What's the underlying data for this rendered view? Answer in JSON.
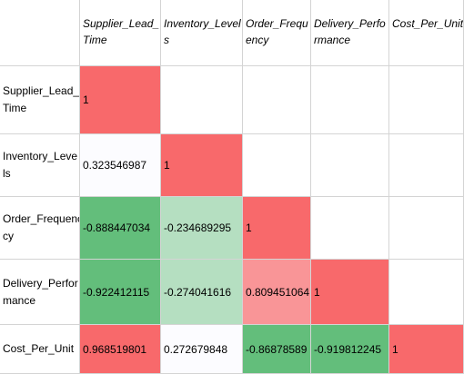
{
  "headers": {
    "cols": [
      "Supplier_Lead_\nTime",
      "Inventory_Level\ns",
      "Order_Frequ\nency",
      "Delivery_Perfo\nrmance",
      "Cost_Per_Unit"
    ],
    "rows": [
      "Supplier_Lead_\nTime",
      "Inventory_Leve\nls",
      "Order_Frequency\ncy",
      "Delivery_Perfor\nmance",
      "Cost_Per_Unit"
    ]
  },
  "matrix": [
    [
      "1",
      "",
      "",
      "",
      ""
    ],
    [
      "0.323546987",
      "1",
      "",
      "",
      ""
    ],
    [
      "-0.888447034",
      "-0.234689295",
      "1",
      "",
      ""
    ],
    [
      "-0.922412115",
      "-0.274041616",
      "0.809451064",
      "1",
      ""
    ],
    [
      "0.968519801",
      "0.272679848",
      "-0.86878589",
      "-0.919812245",
      "1"
    ]
  ],
  "colors": {
    "one": "#f8696b",
    "pos_high": "#f8696b",
    "pos_mid": "#f99597",
    "neg_high": "#63be7b",
    "neg_low": "#b5dfc1",
    "neutral_light": "#fcfcff"
  },
  "fills": [
    [
      "one",
      "",
      "",
      "",
      ""
    ],
    [
      "neutral_light",
      "one",
      "",
      "",
      ""
    ],
    [
      "neg_high",
      "neg_low",
      "one",
      "",
      ""
    ],
    [
      "neg_high",
      "neg_low",
      "pos_mid",
      "one",
      ""
    ],
    [
      "pos_high",
      "neutral_light",
      "neg_high",
      "neg_high",
      "one"
    ]
  ]
}
